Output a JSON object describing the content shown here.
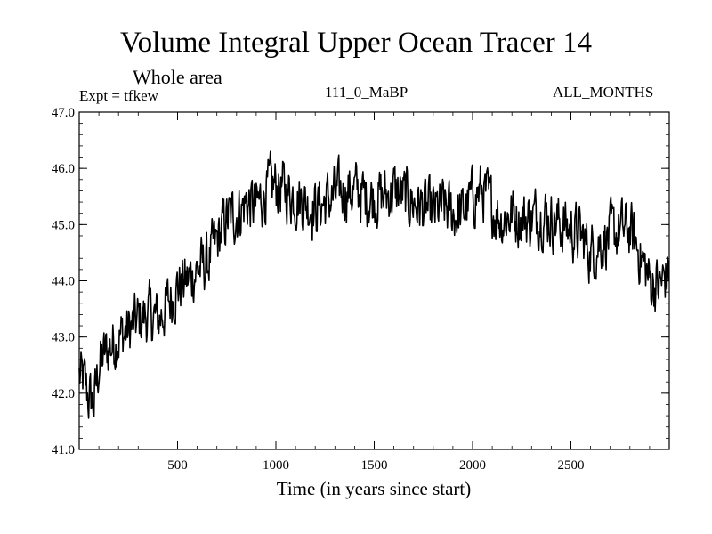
{
  "chart_data": {
    "type": "line",
    "title": "Volume Integral Upper Ocean Tracer 14",
    "subtitle": "Whole area",
    "experiment": "Expt = tfkew",
    "run_label": "111_0_MaBP",
    "months_label": "ALL_MONTHS",
    "xlabel": "Time (in years since start)",
    "ylabel": "",
    "xlim": [
      0,
      3000
    ],
    "ylim": [
      41.0,
      47.0
    ],
    "xticks": [
      500,
      1000,
      1500,
      2000,
      2500
    ],
    "xtick_labels": [
      "500",
      "1000",
      "1500",
      "2000",
      "2500"
    ],
    "yticks": [
      41.0,
      42.0,
      43.0,
      44.0,
      45.0,
      46.0,
      47.0
    ],
    "ytick_labels": [
      "41.0",
      "42.0",
      "43.0",
      "44.0",
      "45.0",
      "46.0",
      "47.0"
    ],
    "grid": false,
    "line_color": "#000000",
    "series": [
      {
        "x": [
          0,
          25,
          50,
          75,
          100,
          150,
          200,
          250,
          300,
          350,
          400,
          450,
          500,
          550,
          600,
          650,
          700,
          750,
          800,
          850,
          900,
          950,
          1000,
          1050,
          1100,
          1150,
          1200,
          1250,
          1300,
          1350,
          1400,
          1450,
          1500,
          1550,
          1600,
          1650,
          1700,
          1750,
          1800,
          1850,
          1900,
          1950,
          2000,
          2050,
          2100,
          2150,
          2200,
          2250,
          2300,
          2350,
          2400,
          2450,
          2500,
          2550,
          2600,
          2650,
          2700,
          2750,
          2800,
          2850,
          2900,
          2950,
          3000
        ],
        "y": [
          42.3,
          42.2,
          41.9,
          41.8,
          42.5,
          42.8,
          43.0,
          43.1,
          43.3,
          43.4,
          43.3,
          43.6,
          43.9,
          44.0,
          44.2,
          44.3,
          44.7,
          45.1,
          45.2,
          45.4,
          45.3,
          45.6,
          45.7,
          45.6,
          45.5,
          45.4,
          45.3,
          45.4,
          45.5,
          45.6,
          45.6,
          45.5,
          45.5,
          45.5,
          45.6,
          45.5,
          45.4,
          45.3,
          45.2,
          45.3,
          45.2,
          45.2,
          45.5,
          45.6,
          45.3,
          45.1,
          45.2,
          45.1,
          45.1,
          45.2,
          45.1,
          45.0,
          44.9,
          44.8,
          44.5,
          44.7,
          44.8,
          44.9,
          44.9,
          44.5,
          44.0,
          43.9,
          44.2
        ]
      }
    ]
  }
}
